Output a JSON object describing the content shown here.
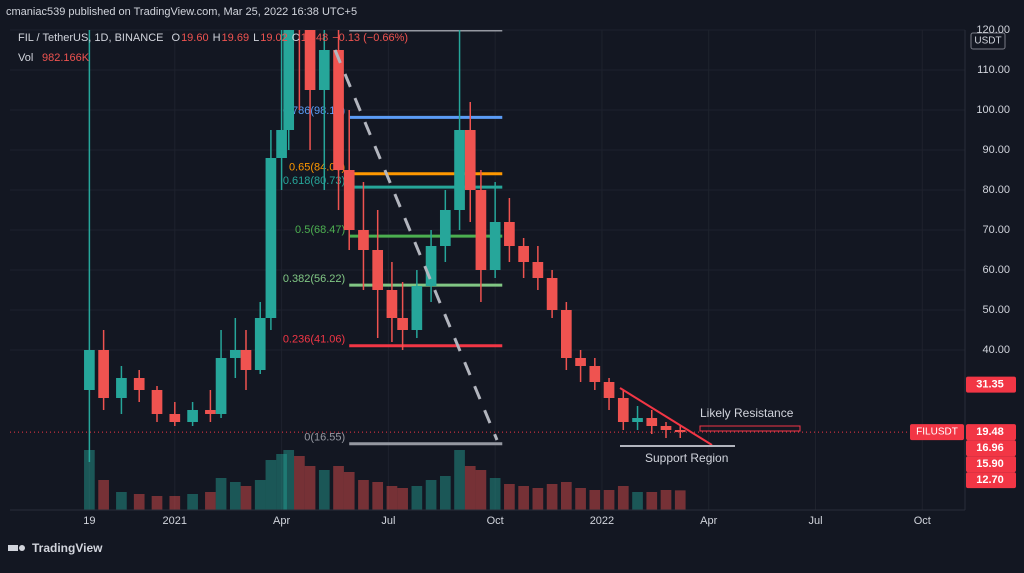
{
  "header": {
    "publisher": "cmaniac539 published on TradingView.com, Mar 25, 2022 16:38 UTC+5",
    "symbol": "FIL / TetherUS, 1D, BINANCE",
    "ohlc": [
      {
        "key": "O",
        "value": "19.60"
      },
      {
        "key": "H",
        "value": "19.69"
      },
      {
        "key": "L",
        "value": "19.02"
      },
      {
        "key": "C",
        "value": "19.48"
      }
    ],
    "change": "−0.13 (−0.66%)",
    "vol_label": "Vol",
    "vol_value": "982.166K",
    "currency": "USDT",
    "brand": "TradingView"
  },
  "chart_data": {
    "type": "candlestick",
    "up_color": "#26a69a",
    "down_color": "#ef5350",
    "xlim": [
      -4.63,
      22.2
    ],
    "ylim": [
      0,
      120
    ],
    "xticks": [
      {
        "value": -2.4,
        "label": "19"
      },
      {
        "value": 0,
        "label": "2021"
      },
      {
        "value": 3,
        "label": "Apr"
      },
      {
        "value": 6,
        "label": "Jul"
      },
      {
        "value": 9,
        "label": "Oct"
      },
      {
        "value": 12,
        "label": "2022"
      },
      {
        "value": 15,
        "label": "Apr"
      },
      {
        "value": 18,
        "label": "Jul"
      },
      {
        "value": 21,
        "label": "Oct"
      }
    ],
    "yticks": [
      {
        "value": 40,
        "label": "40.00"
      },
      {
        "value": 50,
        "label": "50.00"
      },
      {
        "value": 60,
        "label": "60.00"
      },
      {
        "value": 70,
        "label": "70.00"
      },
      {
        "value": 80,
        "label": "80.00"
      },
      {
        "value": 90,
        "label": "90.00"
      },
      {
        "value": 100,
        "label": "100.00"
      },
      {
        "value": 110,
        "label": "110.00"
      },
      {
        "value": 120,
        "label": "120.00"
      }
    ],
    "grid": true,
    "candles": [
      {
        "x": -2.4,
        "open": 30,
        "high": 200,
        "low": 12,
        "close": 40
      },
      {
        "x": -2.0,
        "open": 40,
        "high": 45,
        "low": 25,
        "close": 28
      },
      {
        "x": -1.5,
        "open": 28,
        "high": 36,
        "low": 24,
        "close": 33
      },
      {
        "x": -1.0,
        "open": 33,
        "high": 35,
        "low": 27,
        "close": 30
      },
      {
        "x": -0.5,
        "open": 30,
        "high": 31,
        "low": 22,
        "close": 24
      },
      {
        "x": 0.0,
        "open": 24,
        "high": 27,
        "low": 21,
        "close": 22
      },
      {
        "x": 0.5,
        "open": 22,
        "high": 27,
        "low": 21,
        "close": 25
      },
      {
        "x": 1.0,
        "open": 25,
        "high": 30,
        "low": 22,
        "close": 24
      },
      {
        "x": 1.3,
        "open": 24,
        "high": 45,
        "low": 23,
        "close": 38
      },
      {
        "x": 1.7,
        "open": 38,
        "high": 48,
        "low": 33,
        "close": 40
      },
      {
        "x": 2.0,
        "open": 40,
        "high": 45,
        "low": 30,
        "close": 35
      },
      {
        "x": 2.4,
        "open": 35,
        "high": 52,
        "low": 34,
        "close": 48
      },
      {
        "x": 2.7,
        "open": 48,
        "high": 95,
        "low": 45,
        "close": 88
      },
      {
        "x": 3.0,
        "open": 88,
        "high": 120,
        "low": 80,
        "close": 95
      },
      {
        "x": 3.2,
        "open": 95,
        "high": 200,
        "low": 90,
        "close": 150
      },
      {
        "x": 3.5,
        "open": 150,
        "high": 200,
        "low": 100,
        "close": 120
      },
      {
        "x": 3.8,
        "open": 120,
        "high": 140,
        "low": 90,
        "close": 105
      },
      {
        "x": 4.2,
        "open": 105,
        "high": 130,
        "low": 80,
        "close": 115
      },
      {
        "x": 4.6,
        "open": 115,
        "high": 122,
        "low": 75,
        "close": 85
      },
      {
        "x": 4.9,
        "open": 85,
        "high": 100,
        "low": 65,
        "close": 70
      },
      {
        "x": 5.3,
        "open": 70,
        "high": 82,
        "low": 55,
        "close": 65
      },
      {
        "x": 5.7,
        "open": 65,
        "high": 75,
        "low": 43,
        "close": 55
      },
      {
        "x": 6.1,
        "open": 55,
        "high": 62,
        "low": 42,
        "close": 48
      },
      {
        "x": 6.4,
        "open": 48,
        "high": 57,
        "low": 40,
        "close": 45
      },
      {
        "x": 6.8,
        "open": 45,
        "high": 60,
        "low": 43,
        "close": 56
      },
      {
        "x": 7.2,
        "open": 56,
        "high": 70,
        "low": 52,
        "close": 66
      },
      {
        "x": 7.6,
        "open": 66,
        "high": 80,
        "low": 62,
        "close": 75
      },
      {
        "x": 8.0,
        "open": 75,
        "high": 120,
        "low": 70,
        "close": 95
      },
      {
        "x": 8.3,
        "open": 95,
        "high": 102,
        "low": 72,
        "close": 80
      },
      {
        "x": 8.6,
        "open": 80,
        "high": 85,
        "low": 52,
        "close": 60
      },
      {
        "x": 9.0,
        "open": 60,
        "high": 82,
        "low": 58,
        "close": 72
      },
      {
        "x": 9.4,
        "open": 72,
        "high": 78,
        "low": 62,
        "close": 66
      },
      {
        "x": 9.8,
        "open": 66,
        "high": 68,
        "low": 58,
        "close": 62
      },
      {
        "x": 10.2,
        "open": 62,
        "high": 66,
        "low": 55,
        "close": 58
      },
      {
        "x": 10.6,
        "open": 58,
        "high": 60,
        "low": 48,
        "close": 50
      },
      {
        "x": 11.0,
        "open": 50,
        "high": 52,
        "low": 35,
        "close": 38
      },
      {
        "x": 11.4,
        "open": 38,
        "high": 40,
        "low": 32,
        "close": 36
      },
      {
        "x": 11.8,
        "open": 36,
        "high": 38,
        "low": 30,
        "close": 32
      },
      {
        "x": 12.2,
        "open": 32,
        "high": 33,
        "low": 25,
        "close": 28
      },
      {
        "x": 12.6,
        "open": 28,
        "high": 30,
        "low": 20,
        "close": 22
      },
      {
        "x": 13.0,
        "open": 22,
        "high": 26,
        "low": 20,
        "close": 23
      },
      {
        "x": 13.4,
        "open": 23,
        "high": 25,
        "low": 19,
        "close": 21
      },
      {
        "x": 13.8,
        "open": 21,
        "high": 22,
        "low": 18,
        "close": 20
      },
      {
        "x": 14.2,
        "open": 20,
        "high": 21,
        "low": 18,
        "close": 19.48
      }
    ],
    "volume": [
      3000,
      1500,
      900,
      800,
      700,
      700,
      800,
      900,
      1600,
      1400,
      1200,
      1500,
      2500,
      2800,
      3000,
      2700,
      2200,
      2000,
      2200,
      1900,
      1500,
      1400,
      1200,
      1100,
      1200,
      1500,
      1700,
      3000,
      2200,
      2000,
      1600,
      1300,
      1200,
      1100,
      1300,
      1400,
      1100,
      1000,
      1000,
      1200,
      900,
      900,
      1000,
      982.166
    ],
    "fib_top": 120,
    "fib_levels": [
      {
        "label": "0.786(98.17)",
        "value": 98.17,
        "color": "#5b9cf6"
      },
      {
        "label": "0.65(84.06)",
        "value": 84.06,
        "color": "#ff9800"
      },
      {
        "label": "0.618(80.73)",
        "value": 80.73,
        "color": "#26a69a"
      },
      {
        "label": "0.5(68.47)",
        "value": 68.47,
        "color": "#4caf50"
      },
      {
        "label": "0.382(56.22)",
        "value": 56.22,
        "color": "#81c784"
      },
      {
        "label": "0.236(41.06)",
        "value": 41.06,
        "color": "#f23645"
      },
      {
        "label": "0(16.55)",
        "value": 16.55,
        "color": "#9598a1"
      }
    ],
    "fib_range": [
      4.9,
      9.2
    ],
    "annotations": [
      "Likely Resistance",
      "Support Region"
    ],
    "last_price": 19.48,
    "price_labels": [
      {
        "value": 31.35,
        "label": "31.35",
        "color": "#f23645"
      },
      {
        "value": 19.48,
        "label": "19.48",
        "tag": "FILUSDT",
        "color": "#f23645"
      },
      {
        "value": 16.96,
        "label": "16.96",
        "color": "#f23645"
      },
      {
        "value": 15.9,
        "label": "15.90",
        "color": "#f23645"
      },
      {
        "value": 12.7,
        "label": "12.70",
        "color": "#f23645"
      }
    ]
  }
}
